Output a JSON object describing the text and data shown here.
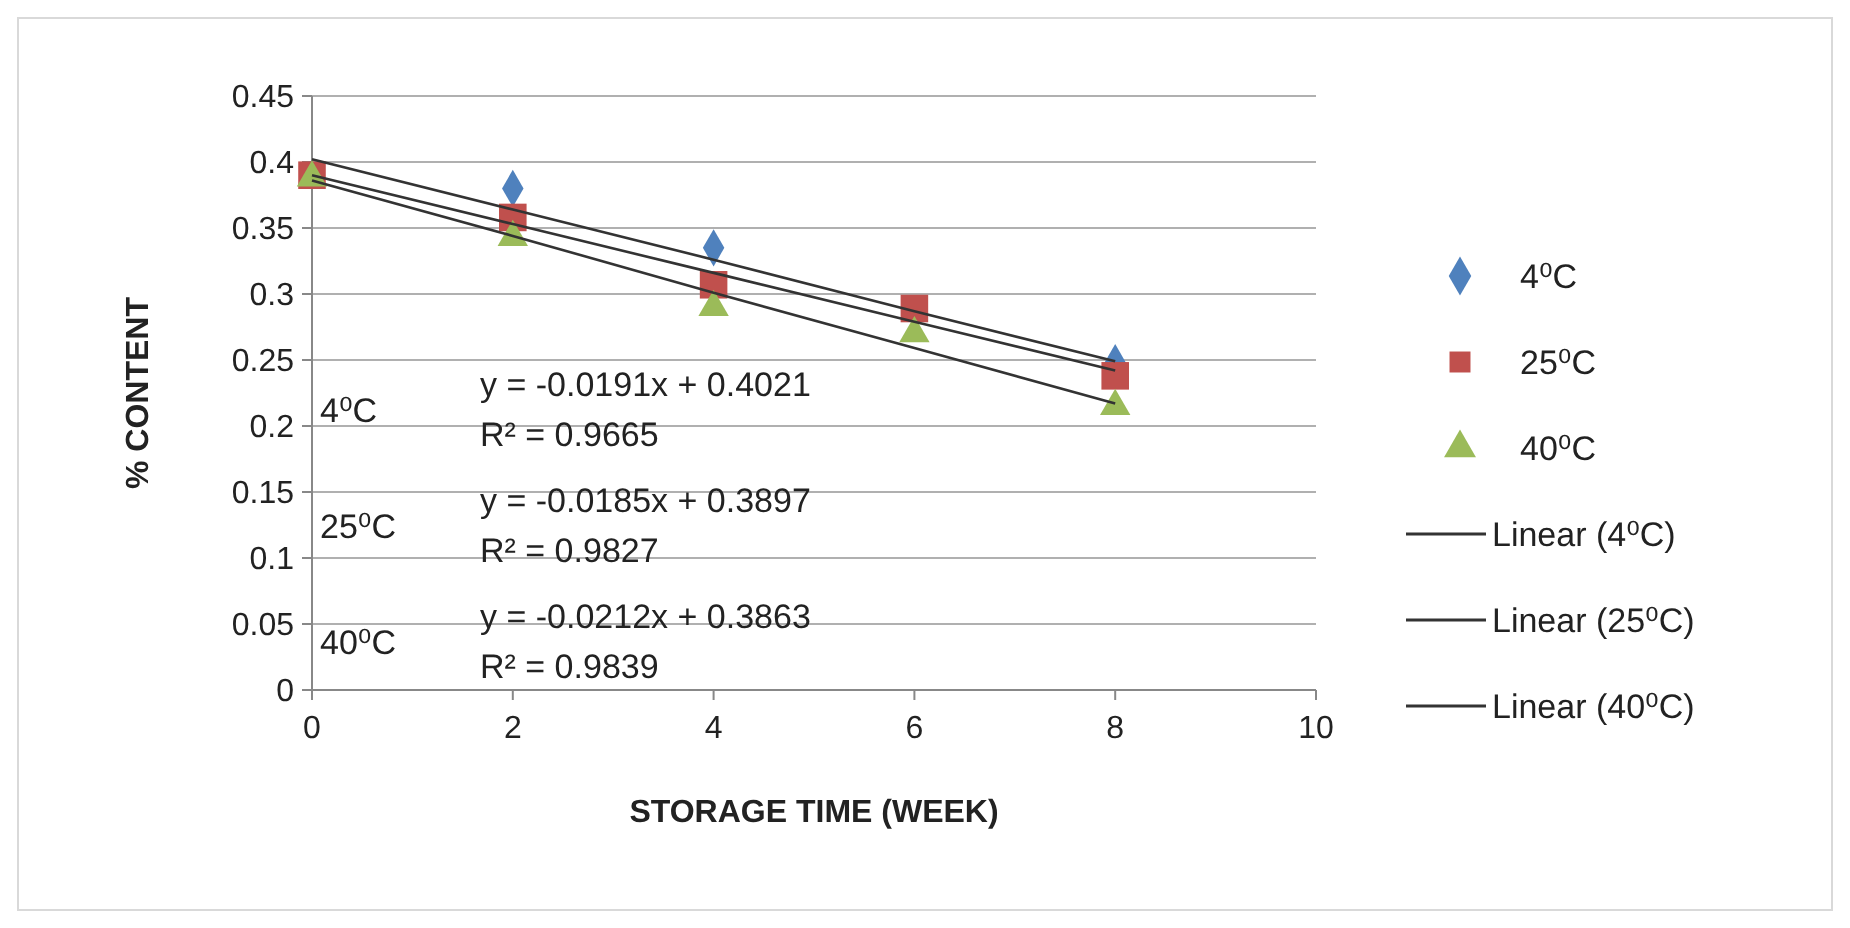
{
  "chart_data": {
    "type": "scatter",
    "xlabel": "STORAGE TIME (WEEK)",
    "ylabel": "% CONTENT",
    "xlim": [
      0,
      10
    ],
    "xticks": [
      0,
      2,
      4,
      6,
      8,
      10
    ],
    "ylim": [
      0,
      0.45
    ],
    "yticks": [
      0,
      0.05,
      0.1,
      0.15,
      0.2,
      0.25,
      0.3,
      0.35,
      0.4,
      0.45
    ],
    "grid": "y",
    "legend": "right",
    "x": [
      0,
      2,
      4,
      6,
      8
    ],
    "series": [
      {
        "name": "4⁰C",
        "color": "#4f81bd",
        "marker": "diamond",
        "values": [
          null,
          0.38,
          0.335,
          null,
          0.248
        ]
      },
      {
        "name": "25⁰C",
        "color": "#c0504d",
        "marker": "square",
        "values": [
          0.39,
          0.358,
          0.307,
          0.289,
          0.238
        ]
      },
      {
        "name": "40⁰C",
        "color": "#9bbb59",
        "marker": "triangle",
        "values": [
          0.388,
          0.343,
          0.29,
          0.27,
          0.215
        ]
      },
      {
        "name": "Linear (4⁰C)",
        "type": "line",
        "color": "#333333",
        "marker": "none",
        "values": [
          0.402,
          0.364,
          0.326,
          0.287,
          0.249
        ]
      },
      {
        "name": "Linear (25⁰C)",
        "type": "line",
        "color": "#333333",
        "marker": "none",
        "values": [
          0.39,
          0.353,
          0.316,
          0.279,
          0.242
        ]
      },
      {
        "name": "Linear (40⁰C)",
        "type": "line",
        "color": "#333333",
        "marker": "none",
        "values": [
          0.386,
          0.344,
          0.301,
          0.259,
          0.217
        ]
      }
    ],
    "annotations": [
      "4⁰C",
      "y = -0.0191x + 0.4021",
      "R² = 0.9665",
      "25⁰C",
      "y = -0.0185x + 0.3897",
      "R² = 0.9827",
      "40⁰C",
      "y = -0.0212x + 0.3863",
      "R² = 0.9839"
    ]
  }
}
